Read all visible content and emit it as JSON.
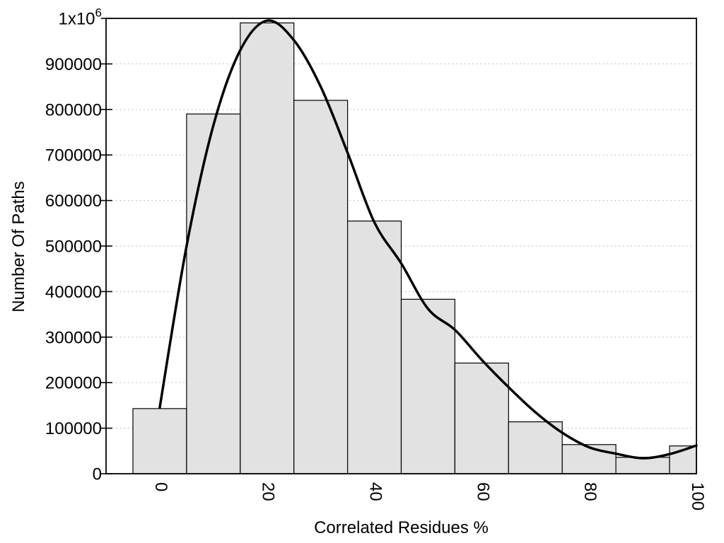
{
  "chart_data": {
    "type": "bar",
    "subtype": "histogram-with-smoothed-curve",
    "title": "",
    "xlabel": "Correlated Residues %",
    "ylabel": "Number Of Paths",
    "xlim": [
      -10,
      100
    ],
    "ylim": [
      0,
      1000000
    ],
    "grid": "horizontal-dotted",
    "legend": "none",
    "xticks": [
      {
        "value": 0,
        "label": "0"
      },
      {
        "value": 20,
        "label": "20"
      },
      {
        "value": 40,
        "label": "40"
      },
      {
        "value": 60,
        "label": "60"
      },
      {
        "value": 80,
        "label": "80"
      },
      {
        "value": 100,
        "label": "100"
      }
    ],
    "yticks": [
      {
        "value": 0,
        "label": "0"
      },
      {
        "value": 100000,
        "label": "100000"
      },
      {
        "value": 200000,
        "label": "200000"
      },
      {
        "value": 300000,
        "label": "300000"
      },
      {
        "value": 400000,
        "label": "400000"
      },
      {
        "value": 500000,
        "label": "500000"
      },
      {
        "value": 600000,
        "label": "600000"
      },
      {
        "value": 700000,
        "label": "700000"
      },
      {
        "value": 800000,
        "label": "800000"
      },
      {
        "value": 900000,
        "label": "900000"
      },
      {
        "value": 1000000,
        "label": "1x10^6"
      }
    ],
    "bars": {
      "bin_width": 10,
      "categories": [
        0,
        10,
        20,
        30,
        40,
        50,
        60,
        70,
        80,
        90,
        100
      ],
      "values": [
        143000,
        790000,
        990000,
        820000,
        555000,
        383000,
        243000,
        114000,
        64000,
        36000,
        61000
      ],
      "clip_to_xlim": true
    },
    "curve": {
      "name": "smoothed-frequency-curve",
      "x": [
        0,
        5,
        10,
        15,
        20,
        25,
        30,
        35,
        40,
        45,
        50,
        55,
        60,
        65,
        70,
        75,
        80,
        85,
        90,
        95,
        100
      ],
      "y": [
        145000,
        500000,
        765000,
        930000,
        995000,
        952000,
        850000,
        705000,
        552000,
        462000,
        362000,
        316000,
        250000,
        190000,
        135000,
        90000,
        58000,
        44000,
        34000,
        43000,
        62000
      ]
    },
    "colors": {
      "bar_fill": "#e2e2e2",
      "bar_stroke": "#000000",
      "curve": "#000000",
      "frame": "#000000",
      "grid": "#c2c2c2",
      "text": "#000000"
    }
  }
}
